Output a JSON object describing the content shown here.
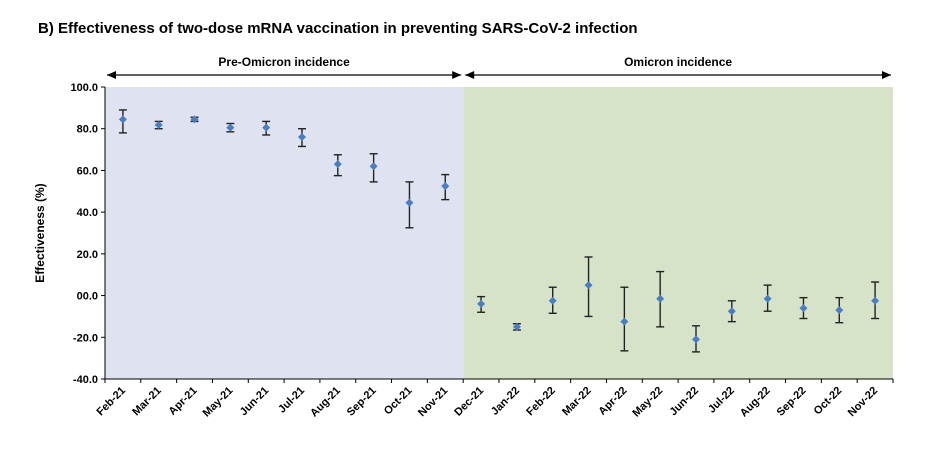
{
  "chart_data": {
    "type": "scatter",
    "title": "B) Effectiveness of two-dose mRNA vaccination in preventing SARS-CoV-2 infection",
    "xlabel": "",
    "ylabel": "Effectiveness (%)",
    "ylim": [
      -40,
      100
    ],
    "yticks": [
      "100.0",
      "80.0",
      "60.0",
      "40.0",
      "20.0",
      "00.0",
      "-20.0",
      "-40.0"
    ],
    "ytick_values": [
      100,
      80,
      60,
      40,
      20,
      0,
      -20,
      -40
    ],
    "categories": [
      "Feb-21",
      "Mar-21",
      "Apr-21",
      "May-21",
      "Jun-21",
      "Jul-21",
      "Aug-21",
      "Sep-21",
      "Oct-21",
      "Nov-21",
      "Dec-21",
      "Jan-22",
      "Feb-22",
      "Mar-22",
      "Apr-22",
      "May-22",
      "Jun-22",
      "Jul-22",
      "Aug-22",
      "Sep-22",
      "Oct-22",
      "Nov-22"
    ],
    "values": [
      84.5,
      81.8,
      84.5,
      80.5,
      80.5,
      76.0,
      63.0,
      62.0,
      44.5,
      52.5,
      -4.0,
      -15.0,
      -2.5,
      5.0,
      -12.5,
      -1.5,
      -21.0,
      -7.5,
      -1.5,
      -6.0,
      -7.0,
      -2.5
    ],
    "ci_low": [
      78.0,
      80.0,
      83.5,
      78.5,
      77.0,
      71.5,
      57.5,
      54.5,
      32.5,
      46.0,
      -8.0,
      -16.5,
      -8.5,
      -10.0,
      -26.5,
      -15.0,
      -27.0,
      -12.5,
      -7.5,
      -11.0,
      -13.0,
      -11.0
    ],
    "ci_high": [
      89.0,
      83.5,
      85.5,
      82.5,
      83.5,
      80.0,
      67.5,
      68.0,
      54.5,
      58.0,
      -0.5,
      -13.5,
      4.0,
      18.5,
      4.0,
      11.5,
      -14.5,
      -2.5,
      5.0,
      -1.0,
      -1.0,
      6.5
    ],
    "periods": [
      {
        "label": "Pre-Omicron incidence",
        "start": "Feb-21",
        "end": "Nov-21",
        "color": "#dfe2f1"
      },
      {
        "label": "Omicron incidence",
        "start": "Dec-21",
        "end": "Nov-22",
        "color": "#d7e3c8"
      }
    ],
    "marker_color": "#4a7ec0",
    "errorbar_color": "#222222"
  }
}
